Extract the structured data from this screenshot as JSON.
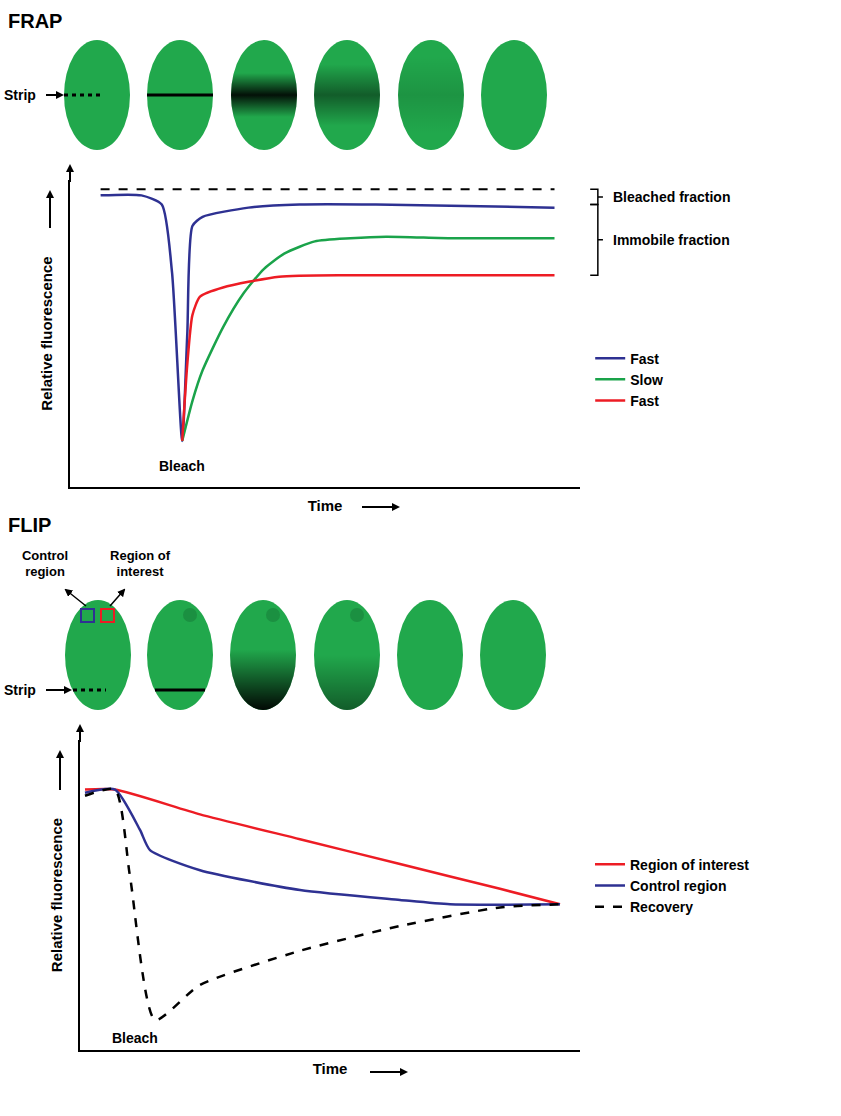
{
  "chart_data": [
    {
      "type": "line",
      "title": "FRAP",
      "x_label": "Time",
      "y_label": "Relative fluorescence",
      "xlim": [
        0,
        100
      ],
      "ylim": [
        0,
        100
      ],
      "xticks": [],
      "yticks": [],
      "tick_labels": false,
      "grid": false,
      "legend": "right",
      "series": [
        {
          "name": "Fast",
          "color": "#2e3192",
          "line_style": "solid",
          "x": [
            6,
            14,
            18,
            20,
            22,
            23,
            24,
            26,
            35,
            45,
            60,
            95
          ],
          "values": [
            95,
            95,
            92,
            70,
            15,
            50,
            85,
            88,
            91,
            92,
            92,
            91
          ]
        },
        {
          "name": "Slow",
          "color": "#1aa34a",
          "line_style": "solid",
          "x": [
            22,
            24,
            26,
            30,
            34,
            38,
            42,
            48,
            55,
            62,
            75,
            95
          ],
          "values": [
            15,
            28,
            38,
            52,
            63,
            71,
            76,
            80,
            81,
            81.5,
            81,
            81
          ]
        },
        {
          "name": "Fast",
          "color": "#ed1c24",
          "line_style": "solid",
          "x": [
            22,
            23,
            24,
            25.5,
            30,
            41,
            55,
            95
          ],
          "values": [
            15,
            40,
            56,
            62,
            65,
            68.5,
            69,
            69
          ]
        }
      ],
      "reference_line": {
        "y": 97,
        "x": [
          6,
          95
        ],
        "color": "#000000",
        "line_style": "dashed"
      },
      "annotations": [
        {
          "text": "Bleach",
          "x": 22,
          "y": 7
        }
      ],
      "brackets": [
        {
          "text": "Bleached fraction",
          "y": [
            92,
            97
          ]
        },
        {
          "text": "Immobile fraction",
          "y": [
            69,
            92
          ]
        }
      ]
    },
    {
      "type": "line",
      "title": "FLIP",
      "x_label": "Time",
      "y_label": "Relative fluorescence",
      "xlim": [
        0,
        100
      ],
      "ylim": [
        0,
        100
      ],
      "xticks": [],
      "yticks": [],
      "tick_labels": false,
      "grid": false,
      "legend": "right",
      "series": [
        {
          "name": "Region of interest",
          "color": "#ed1c24",
          "line_style": "solid",
          "x": [
            1,
            7,
            24,
            44,
            64,
            84,
            96
          ],
          "values": [
            84,
            84,
            76,
            68,
            60,
            52,
            47
          ]
        },
        {
          "name": "Control region",
          "color": "#2e3192",
          "line_style": "solid",
          "x": [
            1,
            7,
            12,
            14,
            24,
            44,
            64,
            74,
            96
          ],
          "values": [
            83,
            84,
            71,
            64.5,
            58,
            51.6,
            48.4,
            47,
            47
          ]
        },
        {
          "name": "Recovery",
          "color": "#000000",
          "line_style": "dashed",
          "x": [
            1,
            7,
            10,
            15,
            24,
            44,
            64,
            84,
            96
          ],
          "values": [
            82,
            84,
            56,
            9.7,
            21,
            32,
            40,
            46,
            47
          ]
        }
      ],
      "annotations": [
        {
          "text": "Bleach",
          "x": 11,
          "y": 4
        }
      ]
    }
  ],
  "cell_diagrams": {
    "frap": {
      "strip_label": "Strip"
    },
    "flip": {
      "strip_label": "Strip",
      "control_label": "Control region",
      "roi_label": "Region of interest"
    }
  }
}
